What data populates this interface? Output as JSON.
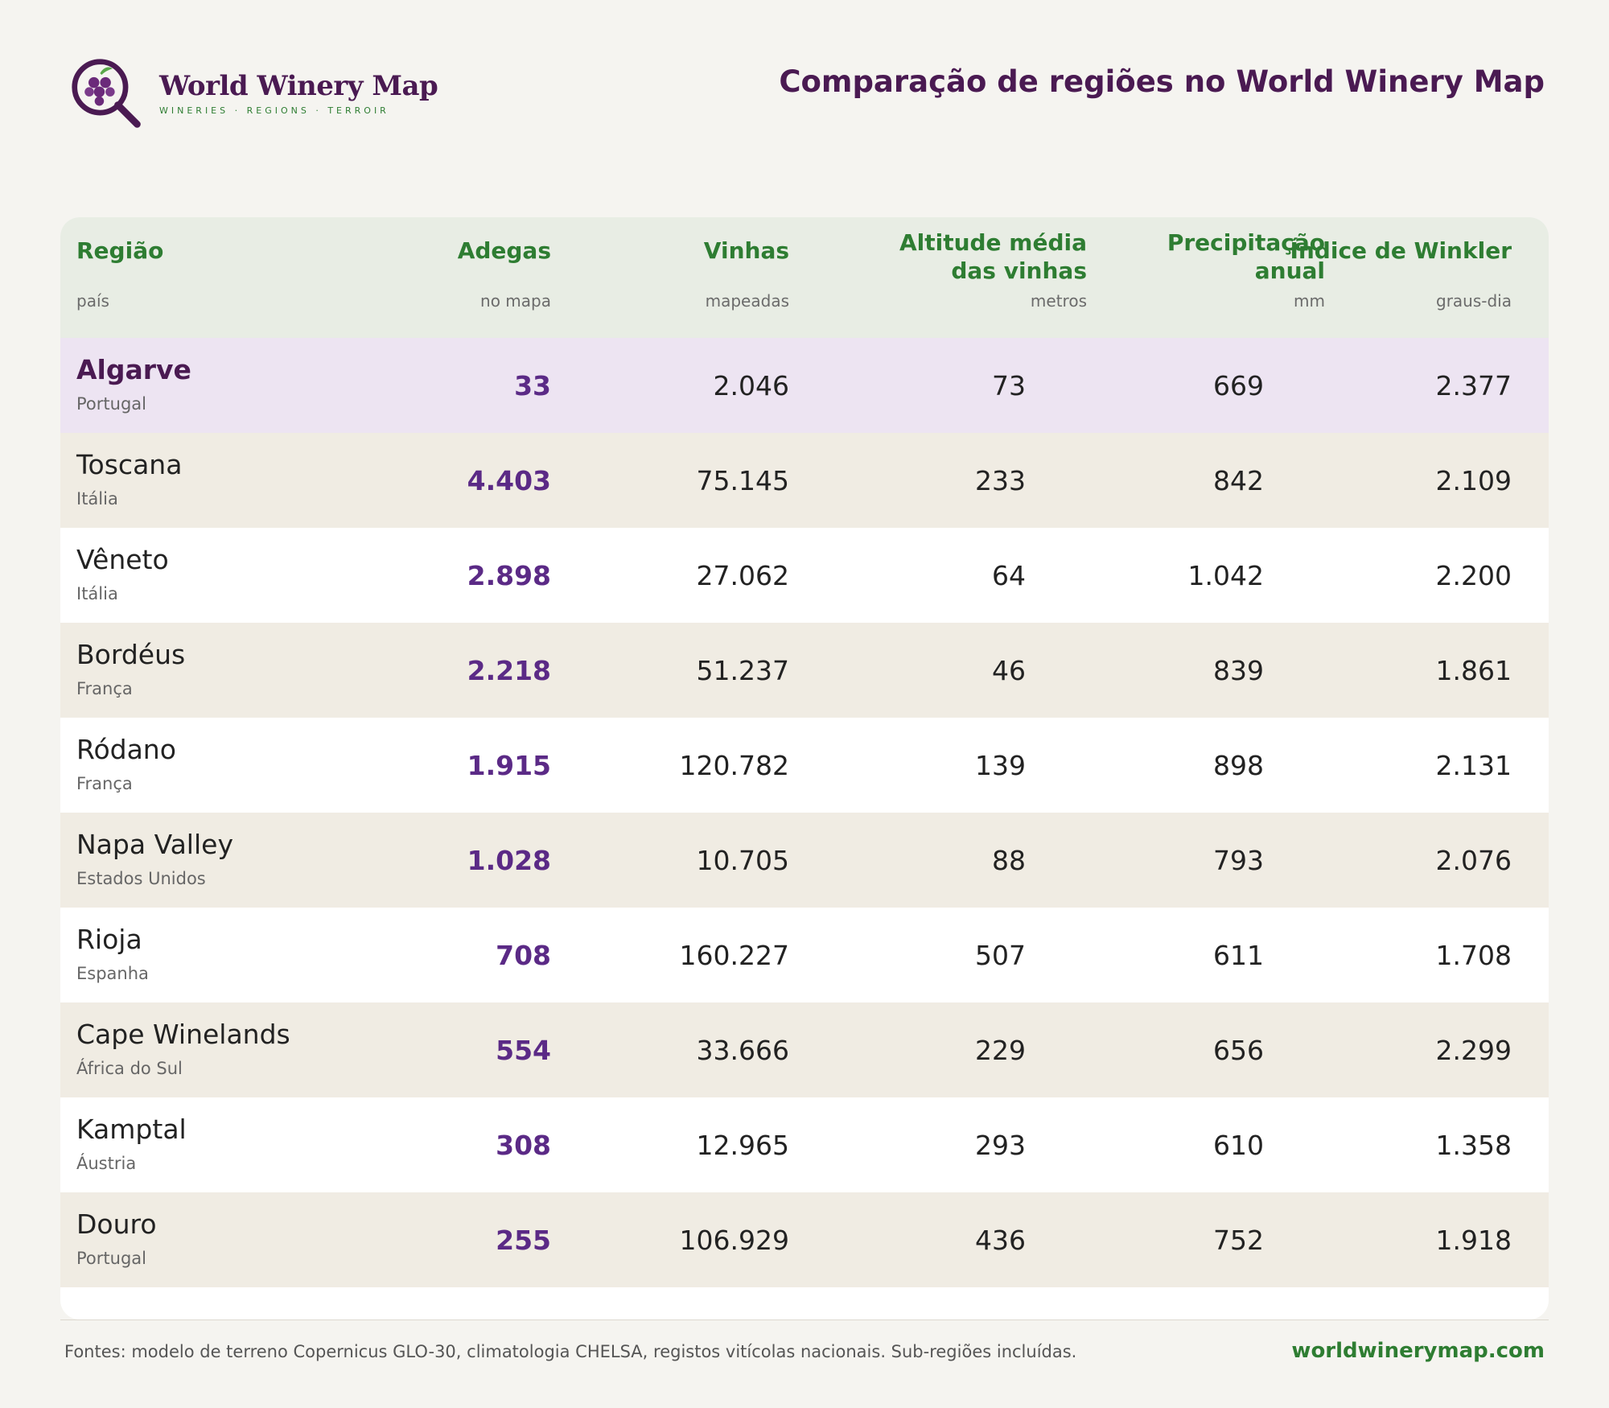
{
  "brand": {
    "name": "World Winery Map",
    "tagline": "WINERIES · REGIONS · TERROIR"
  },
  "title": "Comparação de regiões no World Winery Map",
  "columns": {
    "region": {
      "title": "Região",
      "unit": "país"
    },
    "wineries": {
      "title": "Adegas",
      "unit": "no mapa"
    },
    "vineyards": {
      "title": "Vinhas",
      "unit": "mapeadas"
    },
    "altitude": {
      "title_line1": "Altitude média",
      "title_line2": "das vinhas",
      "unit": "metros"
    },
    "precipitation": {
      "title_line1": "Precipitação",
      "title_line2": "anual",
      "unit": "mm"
    },
    "winkler": {
      "title": "Índice de Winkler",
      "unit": "graus-dia"
    }
  },
  "rows": [
    {
      "name": "Algarve",
      "country": "Portugal",
      "wineries": "33",
      "vineyards": "2.046",
      "altitude": "73",
      "precipitation": "669",
      "winkler": "2.377",
      "highlight": true
    },
    {
      "name": "Toscana",
      "country": "Itália",
      "wineries": "4.403",
      "vineyards": "75.145",
      "altitude": "233",
      "precipitation": "842",
      "winkler": "2.109"
    },
    {
      "name": "Vêneto",
      "country": "Itália",
      "wineries": "2.898",
      "vineyards": "27.062",
      "altitude": "64",
      "precipitation": "1.042",
      "winkler": "2.200"
    },
    {
      "name": "Bordéus",
      "country": "França",
      "wineries": "2.218",
      "vineyards": "51.237",
      "altitude": "46",
      "precipitation": "839",
      "winkler": "1.861"
    },
    {
      "name": "Ródano",
      "country": "França",
      "wineries": "1.915",
      "vineyards": "120.782",
      "altitude": "139",
      "precipitation": "898",
      "winkler": "2.131"
    },
    {
      "name": "Napa Valley",
      "country": "Estados Unidos",
      "wineries": "1.028",
      "vineyards": "10.705",
      "altitude": "88",
      "precipitation": "793",
      "winkler": "2.076"
    },
    {
      "name": "Rioja",
      "country": "Espanha",
      "wineries": "708",
      "vineyards": "160.227",
      "altitude": "507",
      "precipitation": "611",
      "winkler": "1.708"
    },
    {
      "name": "Cape Winelands",
      "country": "África do Sul",
      "wineries": "554",
      "vineyards": "33.666",
      "altitude": "229",
      "precipitation": "656",
      "winkler": "2.299"
    },
    {
      "name": "Kamptal",
      "country": "Áustria",
      "wineries": "308",
      "vineyards": "12.965",
      "altitude": "293",
      "precipitation": "610",
      "winkler": "1.358"
    },
    {
      "name": "Douro",
      "country": "Portugal",
      "wineries": "255",
      "vineyards": "106.929",
      "altitude": "436",
      "precipitation": "752",
      "winkler": "1.918"
    }
  ],
  "footer": {
    "sources": "Fontes: modelo de terreno Copernicus GLO-30, climatologia CHELSA, registos vitícolas nacionais. Sub-regiões incluídas.",
    "url": "worldwinerymap.com"
  },
  "colors": {
    "brand_purple": "#4a1a52",
    "accent_green": "#2e7d32",
    "winery_purple": "#5b2a86",
    "highlight_row": "#ede4f2",
    "alt_row": "#f0ece3",
    "header_bg": "#e8ede4"
  },
  "icons": {
    "logo": "grape-magnifier-icon"
  }
}
